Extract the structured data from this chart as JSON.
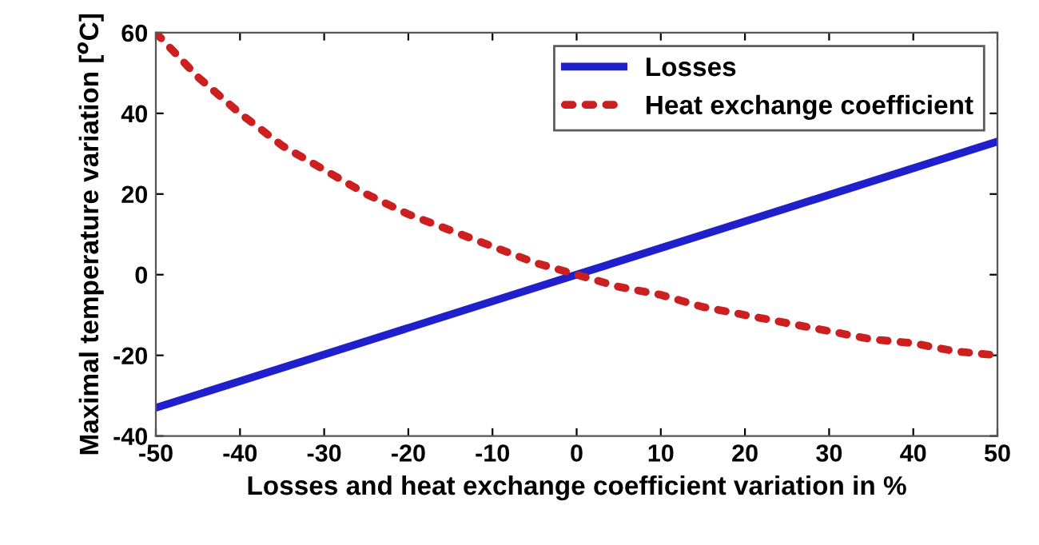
{
  "chart_data": {
    "type": "line",
    "xlabel": "Losses and heat exchange coefficient variation in %",
    "ylabel": "Maximal temperature variation [$^{o}$C]",
    "xlim": [
      -50,
      50
    ],
    "ylim": [
      -40,
      60
    ],
    "xticks": [
      -50,
      -40,
      -30,
      -20,
      -10,
      0,
      10,
      20,
      30,
      40,
      50
    ],
    "yticks": [
      -40,
      -20,
      0,
      20,
      40,
      60
    ],
    "grid": false,
    "legend": "top right",
    "series": [
      {
        "name": "Losses",
        "color": "#1f1fcc",
        "line_style": "solid",
        "x": [
          -50,
          0,
          50
        ],
        "values": [
          -33,
          0,
          33
        ]
      },
      {
        "name": "Heat exchange coefficient",
        "color": "#cc1f1f",
        "line_style": "dotted",
        "x": [
          -50,
          -45,
          -40,
          -35,
          -30,
          -25,
          -20,
          -15,
          -10,
          -5,
          0,
          5,
          10,
          15,
          20,
          25,
          30,
          35,
          40,
          45,
          50
        ],
        "values": [
          60,
          49,
          40,
          32,
          26,
          20,
          15,
          11,
          7,
          3,
          0,
          -3,
          -5,
          -8,
          -10,
          -12,
          -14,
          -16,
          -17,
          -19,
          -20
        ]
      }
    ]
  }
}
